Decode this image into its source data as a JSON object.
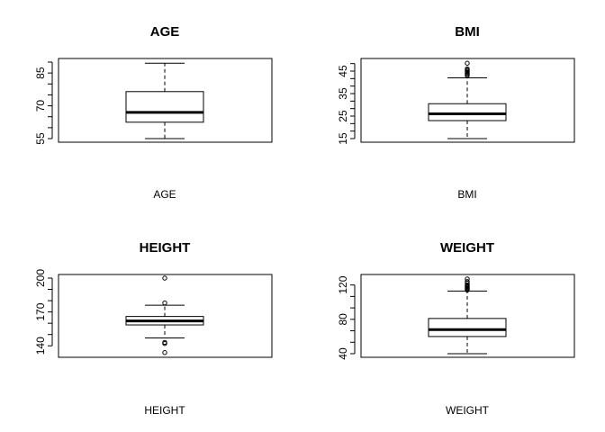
{
  "chart_data": [
    {
      "type": "boxplot",
      "title": "AGE",
      "xlabel": "AGE",
      "ylim": [
        55,
        90
      ],
      "tick_labels": [
        "55",
        "70",
        "85"
      ],
      "box": {
        "whisker_low": 55,
        "q1": 62.5,
        "median": 67,
        "q3": 76.5,
        "whisker_high": 89.5
      },
      "outliers": []
    },
    {
      "type": "boxplot",
      "title": "BMI",
      "xlabel": "BMI",
      "ylim": [
        15,
        49
      ],
      "tick_labels": [
        "15",
        "25",
        "35",
        "45"
      ],
      "box": {
        "whisker_low": 15,
        "q1": 23,
        "median": 26,
        "q3": 30.5,
        "whisker_high": 42
      },
      "outliers": [
        43,
        43.5,
        44,
        44.5,
        45,
        45.5,
        46,
        48.5
      ]
    },
    {
      "type": "boxplot",
      "title": "HEIGHT",
      "xlabel": "HEIGHT",
      "ylim": [
        133,
        200
      ],
      "tick_labels": [
        "140",
        "170",
        "200"
      ],
      "box": {
        "whisker_low": 147,
        "q1": 158.5,
        "median": 162,
        "q3": 166,
        "whisker_high": 176
      },
      "outliers": [
        200,
        178,
        143,
        142,
        134
      ]
    },
    {
      "type": "boxplot",
      "title": "WEIGHT",
      "xlabel": "WEIGHT",
      "ylim": [
        40,
        128
      ],
      "tick_labels": [
        "40",
        "80",
        "120"
      ],
      "box": {
        "whisker_low": 40,
        "q1": 60,
        "median": 68,
        "q3": 81,
        "whisker_high": 113
      },
      "outliers": [
        114,
        115,
        116,
        117,
        118,
        119,
        120,
        122,
        124,
        127
      ]
    }
  ]
}
